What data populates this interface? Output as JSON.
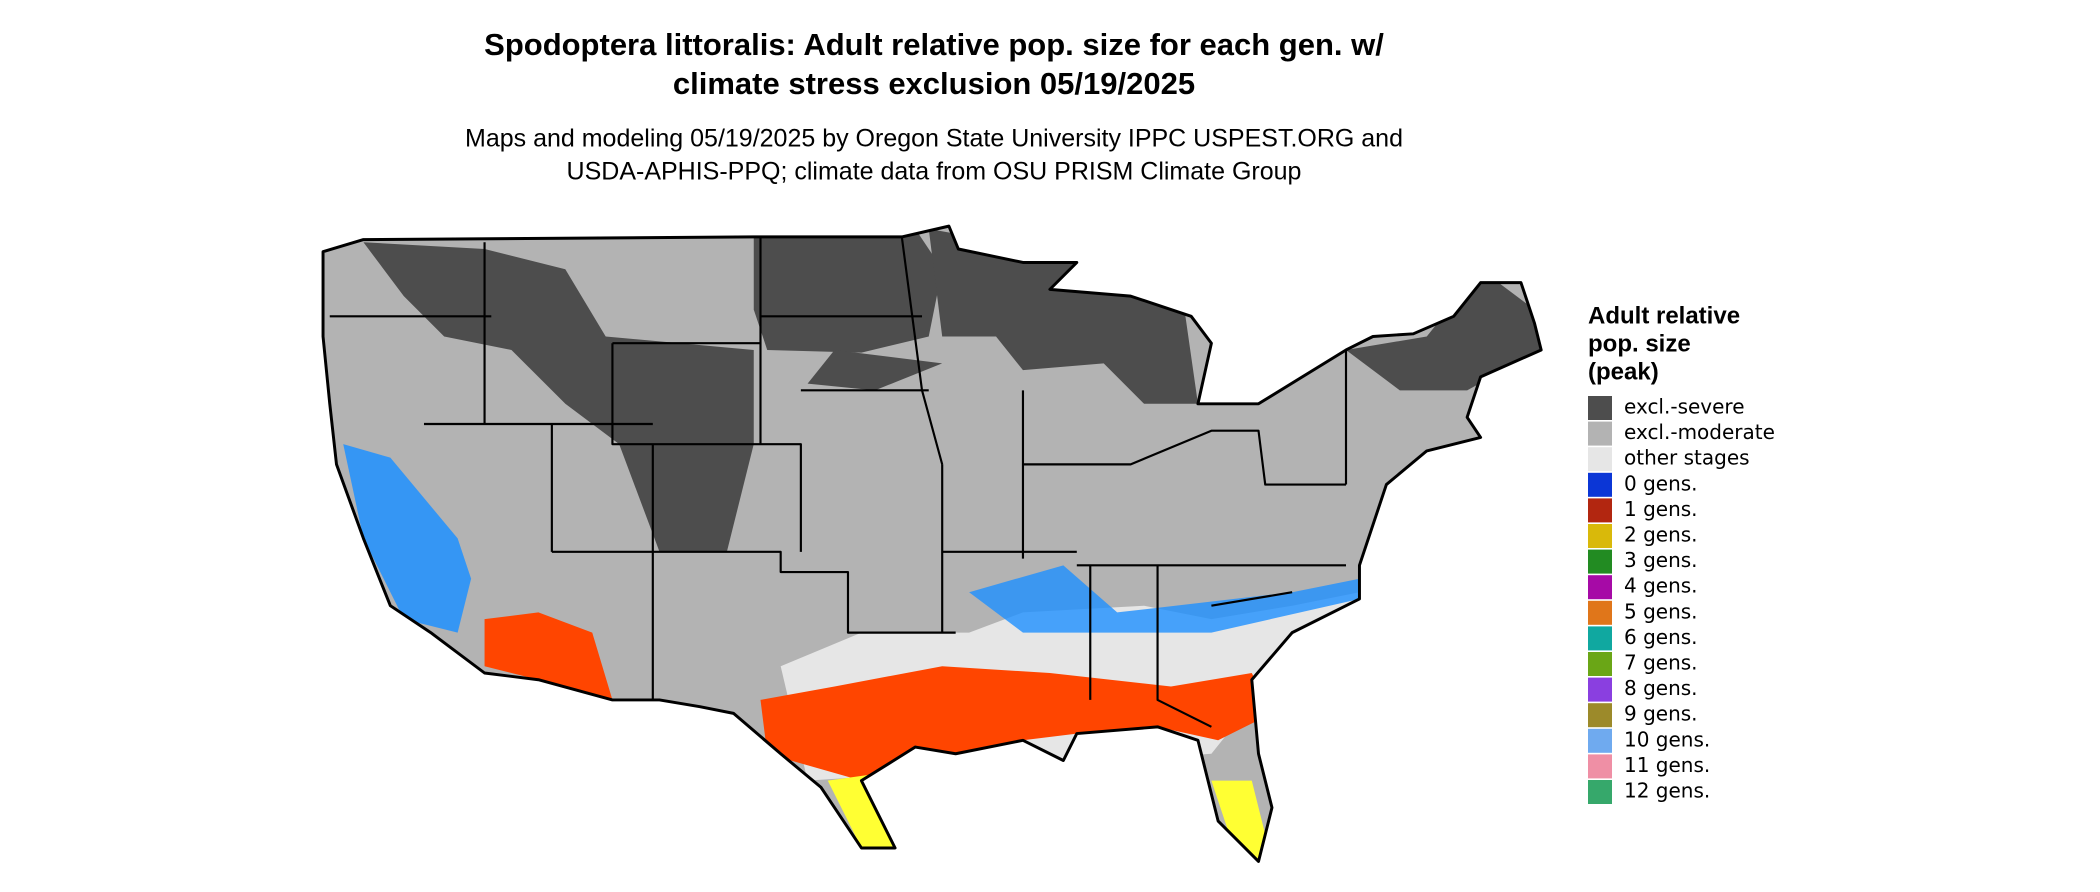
{
  "title": [
    "Spodoptera littoralis: Adult relative pop. size for each gen. w/",
    "climate stress exclusion 05/19/2025"
  ],
  "subtitle": [
    "Maps and modeling 05/19/2025 by Oregon State University IPPC USPEST.ORG and",
    "USDA-APHIS-PPQ; climate data from OSU PRISM Climate Group"
  ],
  "legend": {
    "title": [
      "Adult relative",
      "pop. size",
      "(peak)"
    ],
    "items": [
      {
        "label": "excl.-severe",
        "color": "#4d4d4d"
      },
      {
        "label": "excl.-moderate",
        "color": "#b3b3b3"
      },
      {
        "label": "other stages",
        "color": "#e6e6e6"
      },
      {
        "label": "0 gens.",
        "color": "#0b36d6"
      },
      {
        "label": "1 gens.",
        "color": "#b22610"
      },
      {
        "label": "2 gens.",
        "color": "#d9b90a"
      },
      {
        "label": "3 gens.",
        "color": "#228b22"
      },
      {
        "label": "4 gens.",
        "color": "#a60aa6"
      },
      {
        "label": "5 gens.",
        "color": "#e0761a"
      },
      {
        "label": "6 gens.",
        "color": "#10a8a0"
      },
      {
        "label": "7 gens.",
        "color": "#6aa616"
      },
      {
        "label": "8 gens.",
        "color": "#8a3fe0"
      },
      {
        "label": "9 gens.",
        "color": "#9c8a2a"
      },
      {
        "label": "10 gens.",
        "color": "#6faaef"
      },
      {
        "label": "11 gens.",
        "color": "#ef8fa5"
      },
      {
        "label": "12 gens.",
        "color": "#36a86b"
      }
    ]
  }
}
